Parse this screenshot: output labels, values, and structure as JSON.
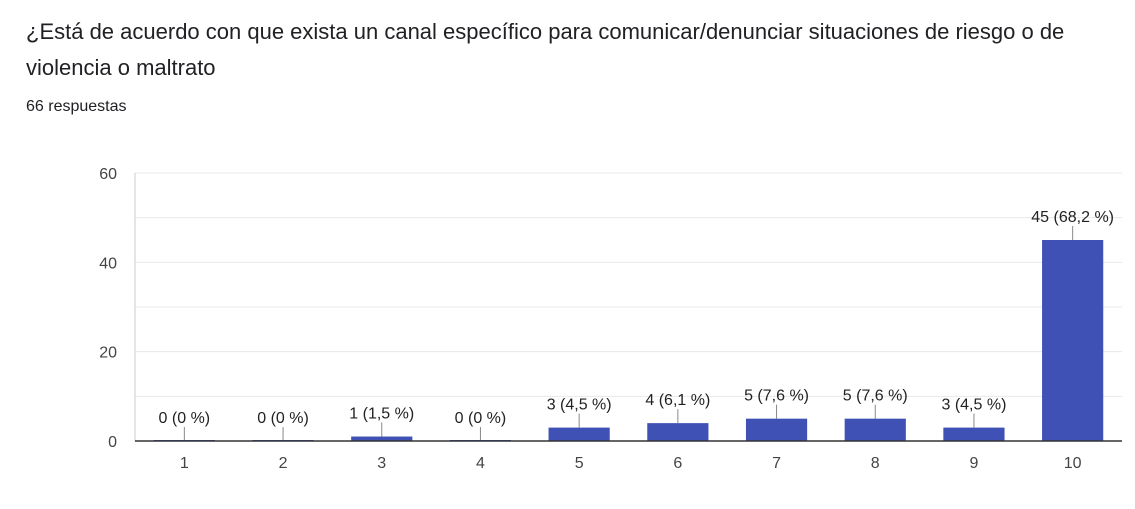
{
  "form": {
    "question": "¿Está de acuerdo con que exista un canal específico para comunicar/denunciar situaciones de riesgo o de violencia o maltrato",
    "responses": "66 respuestas"
  },
  "colors": {
    "bar": "#3f51b5",
    "gridline": "#e8e8e8",
    "axis": "#333333",
    "leader": "#888888"
  },
  "chart_data": {
    "type": "bar",
    "title": "¿Está de acuerdo con que exista un canal específico para comunicar/denunciar situaciones de riesgo o de violencia o maltrato",
    "xlabel": "",
    "ylabel": "",
    "categories": [
      "1",
      "2",
      "3",
      "4",
      "5",
      "6",
      "7",
      "8",
      "9",
      "10"
    ],
    "values": [
      0,
      0,
      1,
      0,
      3,
      4,
      5,
      5,
      3,
      45
    ],
    "data_labels": [
      "0 (0 %)",
      "0 (0 %)",
      "1 (1,5 %)",
      "0 (0 %)",
      "3 (4,5 %)",
      "4 (6,1 %)",
      "5 (7,6 %)",
      "5 (7,6 %)",
      "3 (4,5 %)",
      "45 (68,2 %)"
    ],
    "ylim": [
      0,
      60
    ],
    "yticks": [
      0,
      20,
      40,
      60
    ],
    "minor_gridlines": [
      10,
      30,
      50
    ],
    "grid": true,
    "legend": "none"
  }
}
